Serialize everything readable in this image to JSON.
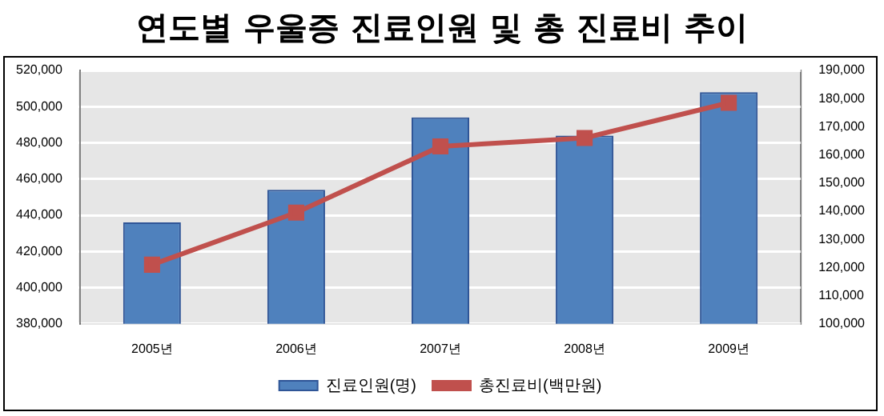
{
  "chart_data": {
    "type": "bar",
    "title": "연도별 우울증 진료인원 및 총 진료비 추이",
    "categories": [
      "2005년",
      "2006년",
      "2007년",
      "2008년",
      "2009년"
    ],
    "series": [
      {
        "name": "진료인원(명)",
        "color": "#4f81bd",
        "values": [
          436000,
          454000,
          494000,
          484000,
          508000
        ]
      },
      {
        "name": "총진료비(백만원)",
        "type": "line",
        "axis": "y2",
        "color": "#c0504d",
        "values": [
          121000,
          139500,
          163000,
          166000,
          178500
        ]
      }
    ],
    "ylim": [
      380000,
      520000
    ],
    "yticks": [
      {
        "value": 380000,
        "label": "380,000"
      },
      {
        "value": 400000,
        "label": "400,000"
      },
      {
        "value": 420000,
        "label": "420,000"
      },
      {
        "value": 440000,
        "label": "440,000"
      },
      {
        "value": 460000,
        "label": "460,000"
      },
      {
        "value": 480000,
        "label": "480,000"
      },
      {
        "value": 500000,
        "label": "500,000"
      },
      {
        "value": 520000,
        "label": "520,000"
      }
    ],
    "y2lim": [
      100000,
      190000
    ],
    "y2ticks": [
      {
        "value": 100000,
        "label": "100,000"
      },
      {
        "value": 110000,
        "label": "110,000"
      },
      {
        "value": 120000,
        "label": "120,000"
      },
      {
        "value": 130000,
        "label": "130,000"
      },
      {
        "value": 140000,
        "label": "140,000"
      },
      {
        "value": 150000,
        "label": "150,000"
      },
      {
        "value": 160000,
        "label": "160,000"
      },
      {
        "value": 170000,
        "label": "170,000"
      },
      {
        "value": 180000,
        "label": "180,000"
      },
      {
        "value": 190000,
        "label": "190,000"
      }
    ],
    "grid": "y",
    "legend": "bottom",
    "marker": "square"
  }
}
